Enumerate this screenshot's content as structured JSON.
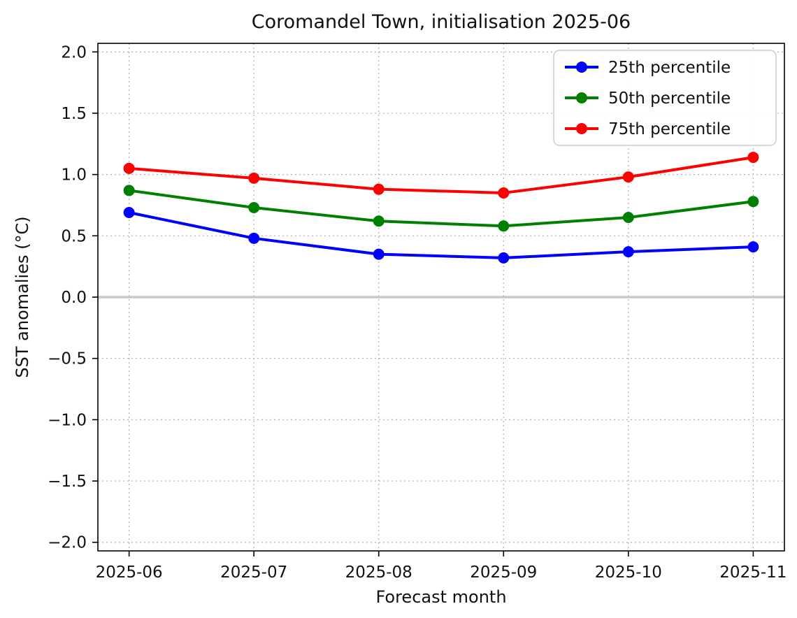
{
  "chart_data": {
    "type": "line",
    "title": "Coromandel Town, initialisation 2025-06",
    "xlabel": "Forecast month",
    "ylabel": "SST anomalies (°C)",
    "categories": [
      "2025-06",
      "2025-07",
      "2025-08",
      "2025-09",
      "2025-10",
      "2025-11"
    ],
    "series": [
      {
        "name": "25th percentile",
        "color": "#0000ff",
        "values": [
          0.69,
          0.48,
          0.35,
          0.32,
          0.37,
          0.41
        ]
      },
      {
        "name": "50th percentile",
        "color": "#008000",
        "values": [
          0.87,
          0.73,
          0.62,
          0.58,
          0.65,
          0.78
        ]
      },
      {
        "name": "75th percentile",
        "color": "#ff0000",
        "values": [
          1.05,
          0.97,
          0.88,
          0.85,
          0.98,
          1.14
        ]
      }
    ],
    "xlim": [
      -0.25,
      5.25
    ],
    "ylim": [
      -2.0,
      2.0
    ],
    "yticks": [
      -2.0,
      -1.5,
      -1.0,
      -0.5,
      0.0,
      0.5,
      1.0,
      1.5,
      2.0
    ],
    "grid": true,
    "grid_style": "dotted",
    "zero_line": {
      "value": 0,
      "color": "#c8c8c8"
    },
    "legend": {
      "position": "upper right",
      "frame": true
    },
    "marker": "o"
  }
}
